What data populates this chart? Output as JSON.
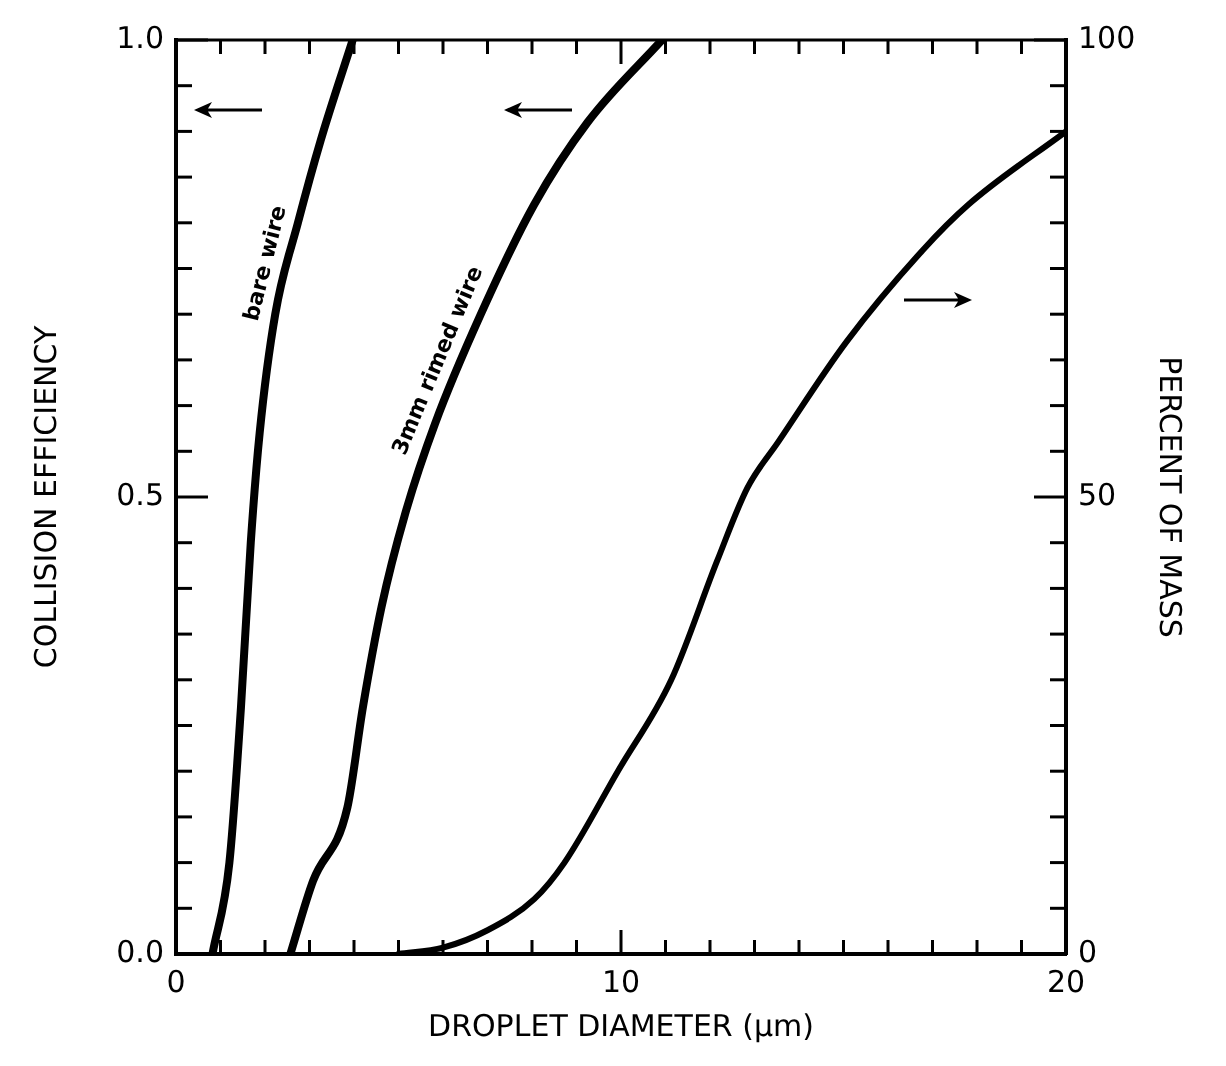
{
  "chart_data": {
    "type": "line",
    "xlabel": "DROPLET DIAMETER (μm)",
    "ylabel": "COLLISION EFFICIENCY",
    "y2label": "PERCENT OF MASS",
    "xlim": [
      0,
      20
    ],
    "ylim": [
      0,
      1
    ],
    "y2lim": [
      0,
      100
    ],
    "xticks": [
      0,
      {
        "value": 1,
        "label": null
      },
      {
        "value": 2,
        "label": null
      },
      {
        "value": 3,
        "label": null
      },
      {
        "value": 4,
        "label": null
      },
      {
        "value": 5,
        "label": null
      },
      {
        "value": 6,
        "label": null
      },
      {
        "value": 7,
        "label": null
      },
      {
        "value": 8,
        "label": null
      },
      {
        "value": 9,
        "label": null
      },
      10,
      {
        "value": 11,
        "label": null
      },
      {
        "value": 12,
        "label": null
      },
      {
        "value": 13,
        "label": null
      },
      {
        "value": 14,
        "label": null
      },
      {
        "value": 15,
        "label": null
      },
      {
        "value": 16,
        "label": null
      },
      {
        "value": 17,
        "label": null
      },
      {
        "value": 18,
        "label": null
      },
      {
        "value": 19,
        "label": null
      },
      20
    ],
    "yticks": [
      {
        "value": 0,
        "label": "0.0"
      },
      {
        "value": 0.05,
        "label": null
      },
      {
        "value": 0.1,
        "label": null
      },
      {
        "value": 0.15,
        "label": null
      },
      {
        "value": 0.2,
        "label": null
      },
      {
        "value": 0.25,
        "label": null
      },
      {
        "value": 0.3,
        "label": null
      },
      {
        "value": 0.35,
        "label": null
      },
      {
        "value": 0.4,
        "label": null
      },
      {
        "value": 0.45,
        "label": null
      },
      {
        "value": 0.5,
        "label": "0.5"
      },
      {
        "value": 0.55,
        "label": null
      },
      {
        "value": 0.6,
        "label": null
      },
      {
        "value": 0.65,
        "label": null
      },
      {
        "value": 0.7,
        "label": null
      },
      {
        "value": 0.75,
        "label": null
      },
      {
        "value": 0.8,
        "label": null
      },
      {
        "value": 0.85,
        "label": null
      },
      {
        "value": 0.9,
        "label": null
      },
      {
        "value": 0.95,
        "label": null
      },
      {
        "value": 1,
        "label": "1.0"
      }
    ],
    "y2ticks": [
      0,
      {
        "value": 5,
        "label": null
      },
      {
        "value": 10,
        "label": null
      },
      {
        "value": 15,
        "label": null
      },
      {
        "value": 20,
        "label": null
      },
      {
        "value": 25,
        "label": null
      },
      {
        "value": 30,
        "label": null
      },
      {
        "value": 35,
        "label": null
      },
      {
        "value": 40,
        "label": null
      },
      {
        "value": 45,
        "label": null
      },
      50,
      {
        "value": 55,
        "label": null
      },
      {
        "value": 60,
        "label": null
      },
      {
        "value": 65,
        "label": null
      },
      {
        "value": 70,
        "label": null
      },
      {
        "value": 75,
        "label": null
      },
      {
        "value": 80,
        "label": null
      },
      {
        "value": 85,
        "label": null
      },
      {
        "value": 90,
        "label": null
      },
      {
        "value": 95,
        "label": null
      },
      100
    ],
    "grid": false,
    "legend": false,
    "marker": "none",
    "line_style": "solid",
    "series": [
      {
        "name": "bare wire",
        "color": "#000000",
        "x": [
          0.82,
          1.2,
          1.46,
          1.68,
          1.88,
          2.23,
          2.74,
          3.25,
          3.97
        ],
        "values": [
          0,
          0.1,
          0.27,
          0.45,
          0.57,
          0.7,
          0.8,
          0.89,
          1.0
        ]
      },
      {
        "name": "3mm rimed wire",
        "color": "#000000",
        "x": [
          2.57,
          3.08,
          3.85,
          4.2,
          4.62,
          5.14,
          5.82,
          6.85,
          8.05,
          9.25,
          10.92
        ],
        "values": [
          0,
          0.08,
          0.16,
          0.27,
          0.38,
          0.48,
          0.58,
          0.7,
          0.82,
          0.91,
          1.0
        ]
      },
      {
        "color": "#000000",
        "axis": "y2",
        "x": [
          5.0,
          6.0,
          7.0,
          8.05,
          8.73,
          9.93,
          11.13,
          12.16,
          12.84,
          13.53,
          15.07,
          16.78,
          17.81,
          20
        ],
        "values": [
          0,
          0.7,
          2.6,
          6,
          10,
          20,
          30,
          43,
          51,
          56,
          67,
          77,
          82,
          90
        ]
      }
    ]
  }
}
